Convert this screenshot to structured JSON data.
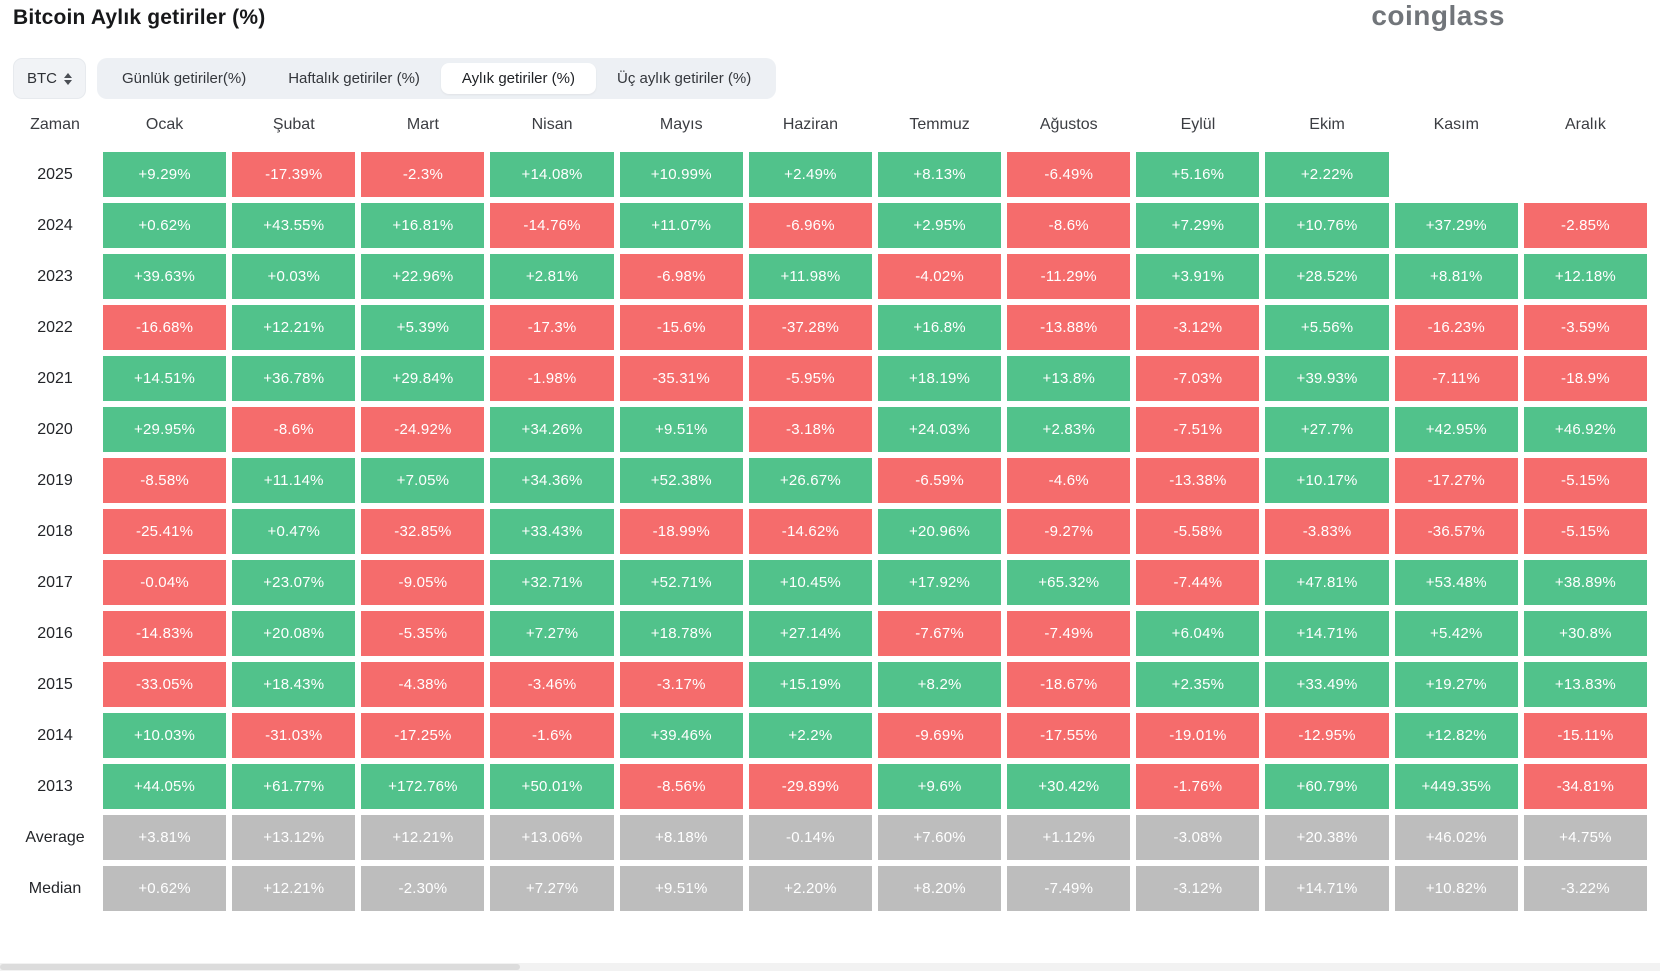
{
  "header": {
    "title": "Bitcoin Aylık getiriler (%)",
    "logo_text": "coinglass"
  },
  "controls": {
    "coin_selector": {
      "label": "BTC"
    },
    "tabs": [
      {
        "label": "Günlük getiriler(%)",
        "active": false
      },
      {
        "label": "Haftalık getiriler (%)",
        "active": false
      },
      {
        "label": "Aylık getiriler (%)",
        "active": true
      },
      {
        "label": "Üç aylık getiriler (%)",
        "active": false
      }
    ]
  },
  "colors": {
    "positive": "#51c28b",
    "negative": "#f56c6c",
    "neutral": "#bdbdbd",
    "tabbar_bg": "#edf0f4",
    "logo_gray": "#71757a"
  },
  "chart_data": {
    "type": "heatmap",
    "title": "Bitcoin Aylık getiriler (%)",
    "value_unit": "%",
    "color_rule": "positive=green, negative=red, summary-rows=gray, blank=no-data",
    "columns": [
      "Zaman",
      "Ocak",
      "Şubat",
      "Mart",
      "Nisan",
      "Mayıs",
      "Haziran",
      "Temmuz",
      "Ağustos",
      "Eylül",
      "Ekim",
      "Kasım",
      "Aralık"
    ],
    "rows": [
      {
        "label": "2025",
        "kind": "year",
        "values": [
          "+9.29%",
          "-17.39%",
          "-2.3%",
          "+14.08%",
          "+10.99%",
          "+2.49%",
          "+8.13%",
          "-6.49%",
          "+5.16%",
          "+2.22%",
          "",
          ""
        ]
      },
      {
        "label": "2024",
        "kind": "year",
        "values": [
          "+0.62%",
          "+43.55%",
          "+16.81%",
          "-14.76%",
          "+11.07%",
          "-6.96%",
          "+2.95%",
          "-8.6%",
          "+7.29%",
          "+10.76%",
          "+37.29%",
          "-2.85%"
        ]
      },
      {
        "label": "2023",
        "kind": "year",
        "values": [
          "+39.63%",
          "+0.03%",
          "+22.96%",
          "+2.81%",
          "-6.98%",
          "+11.98%",
          "-4.02%",
          "-11.29%",
          "+3.91%",
          "+28.52%",
          "+8.81%",
          "+12.18%"
        ]
      },
      {
        "label": "2022",
        "kind": "year",
        "values": [
          "-16.68%",
          "+12.21%",
          "+5.39%",
          "-17.3%",
          "-15.6%",
          "-37.28%",
          "+16.8%",
          "-13.88%",
          "-3.12%",
          "+5.56%",
          "-16.23%",
          "-3.59%"
        ]
      },
      {
        "label": "2021",
        "kind": "year",
        "values": [
          "+14.51%",
          "+36.78%",
          "+29.84%",
          "-1.98%",
          "-35.31%",
          "-5.95%",
          "+18.19%",
          "+13.8%",
          "-7.03%",
          "+39.93%",
          "-7.11%",
          "-18.9%"
        ]
      },
      {
        "label": "2020",
        "kind": "year",
        "values": [
          "+29.95%",
          "-8.6%",
          "-24.92%",
          "+34.26%",
          "+9.51%",
          "-3.18%",
          "+24.03%",
          "+2.83%",
          "-7.51%",
          "+27.7%",
          "+42.95%",
          "+46.92%"
        ]
      },
      {
        "label": "2019",
        "kind": "year",
        "values": [
          "-8.58%",
          "+11.14%",
          "+7.05%",
          "+34.36%",
          "+52.38%",
          "+26.67%",
          "-6.59%",
          "-4.6%",
          "-13.38%",
          "+10.17%",
          "-17.27%",
          "-5.15%"
        ]
      },
      {
        "label": "2018",
        "kind": "year",
        "values": [
          "-25.41%",
          "+0.47%",
          "-32.85%",
          "+33.43%",
          "-18.99%",
          "-14.62%",
          "+20.96%",
          "-9.27%",
          "-5.58%",
          "-3.83%",
          "-36.57%",
          "-5.15%"
        ]
      },
      {
        "label": "2017",
        "kind": "year",
        "values": [
          "-0.04%",
          "+23.07%",
          "-9.05%",
          "+32.71%",
          "+52.71%",
          "+10.45%",
          "+17.92%",
          "+65.32%",
          "-7.44%",
          "+47.81%",
          "+53.48%",
          "+38.89%"
        ]
      },
      {
        "label": "2016",
        "kind": "year",
        "values": [
          "-14.83%",
          "+20.08%",
          "-5.35%",
          "+7.27%",
          "+18.78%",
          "+27.14%",
          "-7.67%",
          "-7.49%",
          "+6.04%",
          "+14.71%",
          "+5.42%",
          "+30.8%"
        ]
      },
      {
        "label": "2015",
        "kind": "year",
        "values": [
          "-33.05%",
          "+18.43%",
          "-4.38%",
          "-3.46%",
          "-3.17%",
          "+15.19%",
          "+8.2%",
          "-18.67%",
          "+2.35%",
          "+33.49%",
          "+19.27%",
          "+13.83%"
        ]
      },
      {
        "label": "2014",
        "kind": "year",
        "values": [
          "+10.03%",
          "-31.03%",
          "-17.25%",
          "-1.6%",
          "+39.46%",
          "+2.2%",
          "-9.69%",
          "-17.55%",
          "-19.01%",
          "-12.95%",
          "+12.82%",
          "-15.11%"
        ]
      },
      {
        "label": "2013",
        "kind": "year",
        "values": [
          "+44.05%",
          "+61.77%",
          "+172.76%",
          "+50.01%",
          "-8.56%",
          "-29.89%",
          "+9.6%",
          "+30.42%",
          "-1.76%",
          "+60.79%",
          "+449.35%",
          "-34.81%"
        ]
      },
      {
        "label": "Average",
        "kind": "summary",
        "values": [
          "+3.81%",
          "+13.12%",
          "+12.21%",
          "+13.06%",
          "+8.18%",
          "-0.14%",
          "+7.60%",
          "+1.12%",
          "-3.08%",
          "+20.38%",
          "+46.02%",
          "+4.75%"
        ]
      },
      {
        "label": "Median",
        "kind": "summary",
        "values": [
          "+0.62%",
          "+12.21%",
          "-2.30%",
          "+7.27%",
          "+9.51%",
          "+2.20%",
          "+8.20%",
          "-7.49%",
          "-3.12%",
          "+14.71%",
          "+10.82%",
          "-3.22%"
        ]
      }
    ]
  }
}
